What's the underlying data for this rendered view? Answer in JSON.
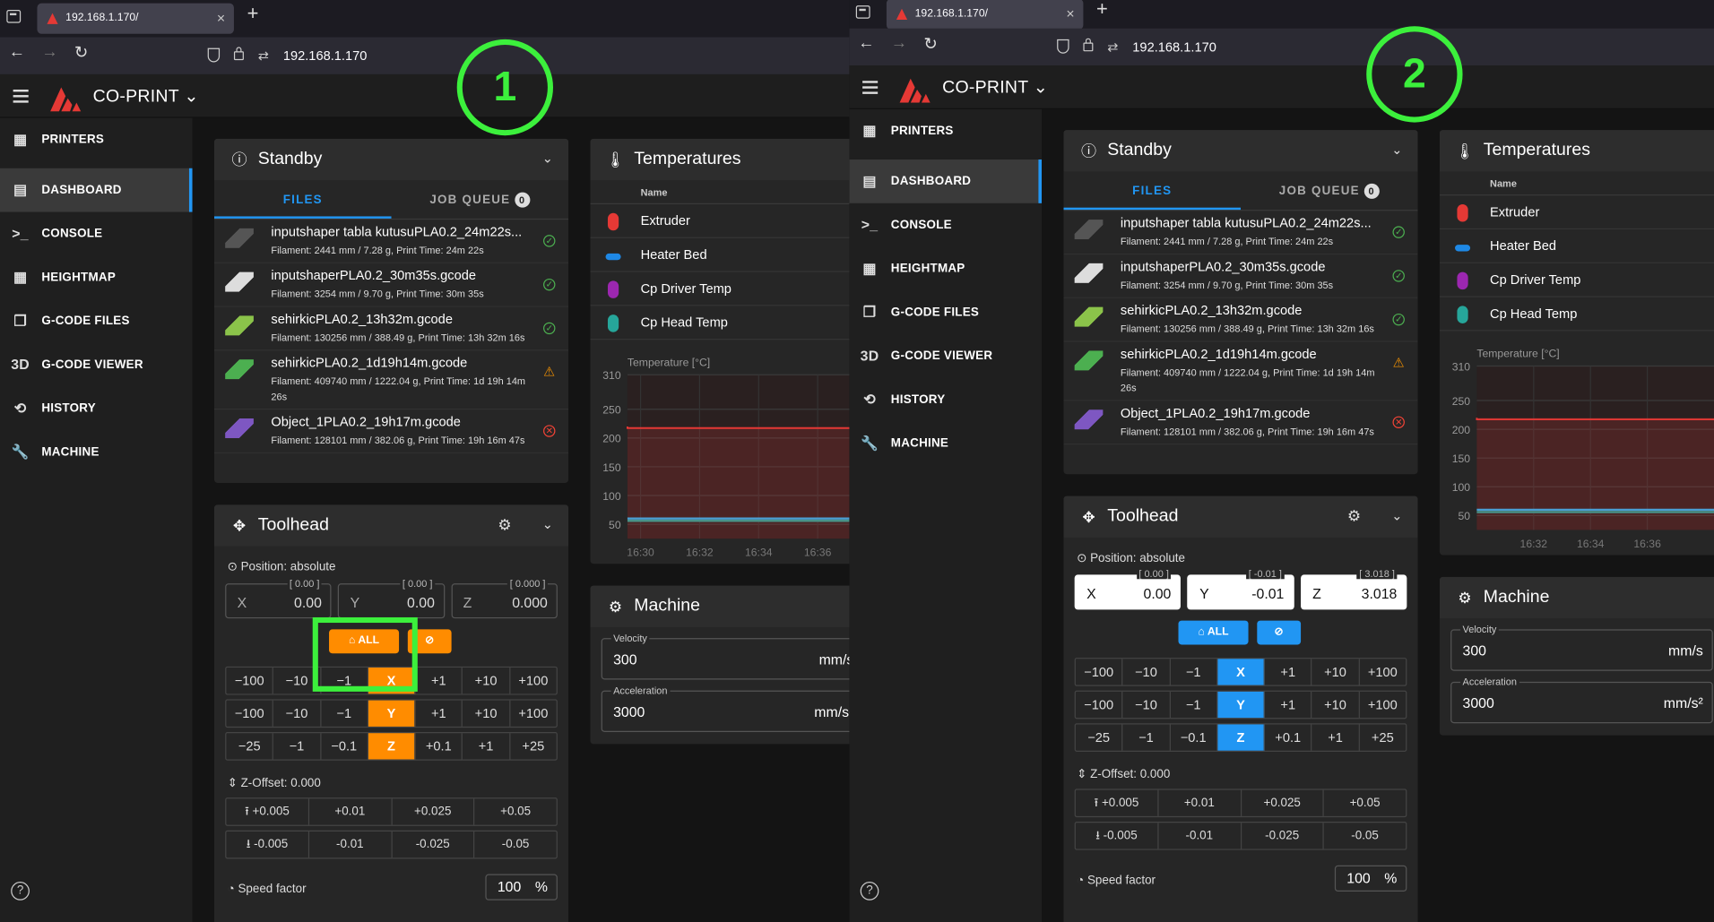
{
  "browser": {
    "tab_title": "192.168.1.170/",
    "url": "192.168.1.170",
    "tab_close": "×",
    "new_tab": "+"
  },
  "app": {
    "brand": "CO-PRINT",
    "sidebar": [
      {
        "label": "PRINTERS",
        "icon": "printers-grid-icon",
        "glyph": "▦"
      },
      {
        "label": "DASHBOARD",
        "icon": "dashboard-icon",
        "glyph": "▤"
      },
      {
        "label": "CONSOLE",
        "icon": "console-icon",
        "glyph": ">_"
      },
      {
        "label": "HEIGHTMAP",
        "icon": "heightmap-grid-icon",
        "glyph": "▦"
      },
      {
        "label": "G-CODE FILES",
        "icon": "gcode-files-icon",
        "glyph": "❐"
      },
      {
        "label": "G-CODE VIEWER",
        "icon": "3d-icon",
        "glyph": "3D"
      },
      {
        "label": "HISTORY",
        "icon": "history-icon",
        "glyph": "⟲"
      },
      {
        "label": "MACHINE",
        "icon": "wrench-icon",
        "glyph": "🔧"
      }
    ],
    "help": "?"
  },
  "status_card": {
    "title": "Standby",
    "tab_files": "FILES",
    "tab_queue": "JOB QUEUE",
    "queue_count": "0",
    "files": [
      {
        "name": "inputshaper tabla kutusuPLA0.2_24m22s...",
        "meta": "Filament: 2441 mm / 7.28 g, Print Time: 24m 22s",
        "status": "ok"
      },
      {
        "name": "inputshaperPLA0.2_30m35s.gcode",
        "meta": "Filament: 3254 mm / 9.70 g, Print Time: 30m 35s",
        "status": "ok"
      },
      {
        "name": "sehirkicPLA0.2_13h32m.gcode",
        "meta": "Filament: 130256 mm / 388.49 g, Print Time: 13h 32m 16s",
        "status": "ok"
      },
      {
        "name": "sehirkicPLA0.2_1d19h14m.gcode",
        "meta": "Filament: 409740 mm / 1222.04 g, Print Time: 1d 19h 14m 26s",
        "status": "warn"
      },
      {
        "name": "Object_1PLA0.2_19h17m.gcode",
        "meta": "Filament: 128101 mm / 382.06 g, Print Time: 19h 16m 47s",
        "status": "err"
      }
    ]
  },
  "toolhead": {
    "title": "Toolhead",
    "position_label": "Position: absolute",
    "home_all": "ALL",
    "jog_rows": [
      {
        "axis": "X",
        "buttons": [
          "−100",
          "−10",
          "−1",
          "X",
          "+1",
          "+10",
          "+100"
        ]
      },
      {
        "axis": "Y",
        "buttons": [
          "−100",
          "−10",
          "−1",
          "Y",
          "+1",
          "+10",
          "+100"
        ]
      },
      {
        "axis": "Z",
        "buttons": [
          "−25",
          "−1",
          "−0.1",
          "Z",
          "+0.1",
          "+1",
          "+25"
        ]
      }
    ],
    "zoffset_label": "Z-Offset: 0.000",
    "zoff_up": [
      "+0.005",
      "+0.01",
      "+0.025",
      "+0.05"
    ],
    "zoff_down": [
      "-0.005",
      "-0.01",
      "-0.025",
      "-0.05"
    ],
    "speed_label": "Speed factor",
    "speed_value": "100",
    "speed_unit": "%"
  },
  "positions": {
    "p1": {
      "x": "0.00",
      "y": "0.00",
      "z": "0.000",
      "hx": "[ 0.00 ]",
      "hy": "[ 0.00 ]",
      "hz": "[ 0.000 ]"
    },
    "p2": {
      "x": "0.00",
      "y": "-0.01",
      "z": "3.018",
      "hx": "[ 0.00 ]",
      "hy": "[ -0.01 ]",
      "hz": "[ 3.018 ]"
    }
  },
  "temperatures": {
    "title": "Temperatures",
    "name_header": "Name",
    "sensors": [
      {
        "name": "Extruder",
        "color": "#e53935"
      },
      {
        "name": "Heater Bed",
        "color": "#1e88e5"
      },
      {
        "name": "Cp Driver Temp",
        "color": "#9c27b0"
      },
      {
        "name": "Cp Head Temp",
        "color": "#26a69a"
      }
    ]
  },
  "chart_data": {
    "type": "line",
    "ylabel": "Temperature [°C]",
    "yticks": [
      50,
      100,
      150,
      200,
      250,
      310
    ],
    "ylim": [
      25,
      310
    ],
    "xticks_p1": [
      "16:30",
      "16:32",
      "16:34",
      "16:36"
    ],
    "xticks_p2": [
      "16:32",
      "16:34",
      "16:36"
    ],
    "series": [
      {
        "name": "Extruder",
        "color": "#e53935",
        "level": 220
      },
      {
        "name": "Heater Bed",
        "color": "#29b6f6",
        "level": 60
      },
      {
        "name": "Cp Head Temp",
        "color": "#26a69a",
        "level": 56
      }
    ]
  },
  "machine": {
    "title": "Machine",
    "velocity_label": "Velocity",
    "velocity_value": "300",
    "velocity_unit": "mm/s",
    "accel_label": "Acceleration",
    "accel_value": "3000",
    "accel_unit": "mm/s²"
  },
  "annotations": {
    "one": "1",
    "two": "2"
  },
  "colors": {
    "home_p1": "#ff8c00",
    "home_p2": "#2196f3",
    "annotation": "#3cf03c"
  }
}
